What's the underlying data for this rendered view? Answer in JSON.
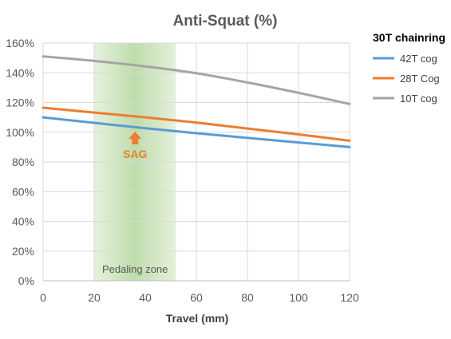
{
  "chart_data": {
    "type": "line",
    "title": "Anti-Squat (%)",
    "xlabel": "Travel (mm)",
    "ylabel": "",
    "xlim": [
      0,
      120
    ],
    "ylim": [
      0,
      160
    ],
    "x_ticks": [
      0,
      20,
      40,
      60,
      80,
      100,
      120
    ],
    "y_ticks": [
      0,
      20,
      40,
      60,
      80,
      100,
      120,
      140,
      160
    ],
    "y_tick_labels": [
      "0%",
      "20%",
      "40%",
      "60%",
      "80%",
      "100%",
      "120%",
      "140%",
      "160%"
    ],
    "grid": "vertical and horizontal",
    "legend": {
      "title": "30T chainring",
      "position": "right"
    },
    "series": [
      {
        "name": "42T cog",
        "color": "#5b9bd5",
        "x": [
          0,
          20,
          40,
          60,
          80,
          100,
          120
        ],
        "values": [
          110,
          106.3,
          102.7,
          99.3,
          96.2,
          93.1,
          90
        ]
      },
      {
        "name": "28T Cog",
        "color": "#ed7d31",
        "x": [
          0,
          20,
          40,
          60,
          80,
          100,
          120
        ],
        "values": [
          116.5,
          113.2,
          110,
          106.5,
          102.5,
          98.5,
          94.3
        ]
      },
      {
        "name": "10T cog",
        "color": "#a5a5a5",
        "x": [
          0,
          20,
          40,
          60,
          80,
          100,
          120
        ],
        "values": [
          151,
          148,
          144.3,
          139.7,
          133.5,
          126.5,
          119
        ]
      }
    ],
    "annotations": {
      "zone": {
        "label": "Pedaling zone",
        "x_start": 20,
        "x_end": 52,
        "color": "#a9d18e"
      },
      "sag": {
        "label": "SAG",
        "x": 36,
        "color": "#ed7d31"
      }
    }
  }
}
